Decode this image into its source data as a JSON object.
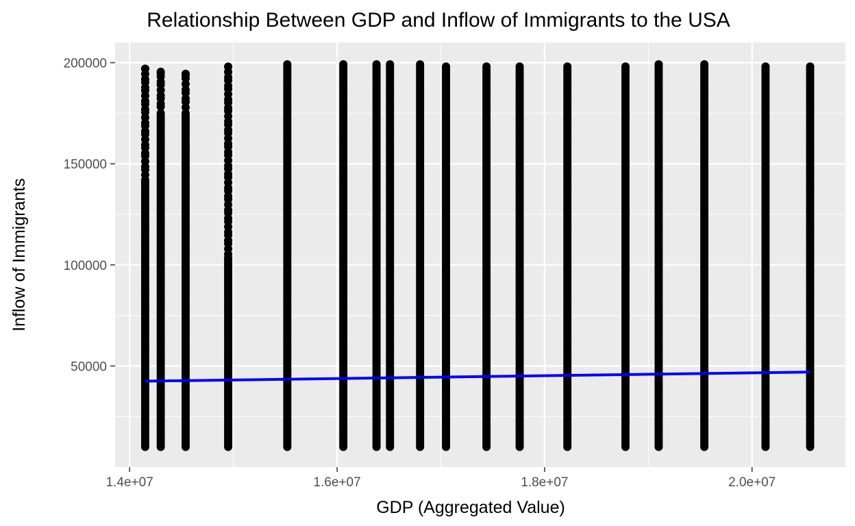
{
  "chart_data": {
    "type": "scatter",
    "title": "Relationship Between GDP and Inflow of Immigrants to the USA",
    "xlabel": "GDP (Aggregated Value)",
    "ylabel": "Inflow of Immigrants",
    "xlim": [
      13860000,
      20900000
    ],
    "ylim": [
      0,
      210000
    ],
    "x_ticks": [
      14000000,
      16000000,
      18000000,
      20000000
    ],
    "x_tick_labels": [
      "1.4e+07",
      "1.6e+07",
      "1.8e+07",
      "2.0e+07"
    ],
    "y_ticks": [
      50000,
      100000,
      150000,
      200000
    ],
    "y_tick_labels": [
      "50000",
      "100000",
      "150000",
      "200000"
    ],
    "grid": true,
    "legend": "none",
    "point_color": "#000000",
    "fit_color": "#0000ff",
    "panel_color": "#ebebeb",
    "columns": [
      {
        "x": 14150000,
        "y_min": 10000,
        "y_max": 197000,
        "dense_above": 143000
      },
      {
        "x": 14300000,
        "y_min": 10000,
        "y_max": 195500,
        "dense_above": 176000
      },
      {
        "x": 14540000,
        "y_min": 10000,
        "y_max": 194500,
        "dense_above": 176000
      },
      {
        "x": 14950000,
        "y_min": 10000,
        "y_max": 198000,
        "dense_above": 104000
      },
      {
        "x": 15520000,
        "y_min": 10000,
        "y_max": 200000,
        "dense_above": 200000
      },
      {
        "x": 16060000,
        "y_min": 10000,
        "y_max": 199500,
        "dense_above": 199500
      },
      {
        "x": 16380000,
        "y_min": 10000,
        "y_max": 199500,
        "dense_above": 199500
      },
      {
        "x": 16510000,
        "y_min": 10000,
        "y_max": 199500,
        "dense_above": 199500
      },
      {
        "x": 16800000,
        "y_min": 10000,
        "y_max": 200000,
        "dense_above": 200000
      },
      {
        "x": 17050000,
        "y_min": 10000,
        "y_max": 198500,
        "dense_above": 198500
      },
      {
        "x": 17440000,
        "y_min": 10000,
        "y_max": 199000,
        "dense_above": 199000
      },
      {
        "x": 17760000,
        "y_min": 10000,
        "y_max": 199000,
        "dense_above": 199000
      },
      {
        "x": 18220000,
        "y_min": 10000,
        "y_max": 198500,
        "dense_above": 198500
      },
      {
        "x": 18780000,
        "y_min": 10000,
        "y_max": 198500,
        "dense_above": 198500
      },
      {
        "x": 19100000,
        "y_min": 10000,
        "y_max": 200000,
        "dense_above": 200000
      },
      {
        "x": 19540000,
        "y_min": 10000,
        "y_max": 200000,
        "dense_above": 200000
      },
      {
        "x": 20130000,
        "y_min": 10000,
        "y_max": 198500,
        "dense_above": 198500
      },
      {
        "x": 20560000,
        "y_min": 10000,
        "y_max": 199000,
        "dense_above": 199000
      }
    ],
    "fit_line": {
      "x": [
        14150000,
        20560000
      ],
      "y": [
        42500,
        47000
      ]
    }
  }
}
